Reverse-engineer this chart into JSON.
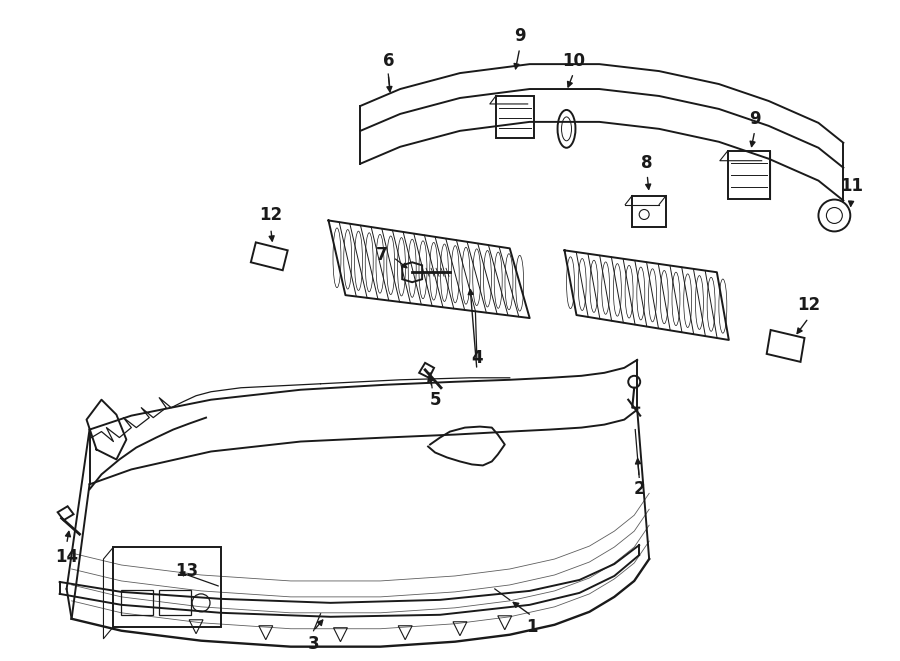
{
  "bg_color": "#ffffff",
  "line_color": "#1a1a1a",
  "label_color": "#1a1a1a",
  "lw": 1.4,
  "fontsize": 12
}
